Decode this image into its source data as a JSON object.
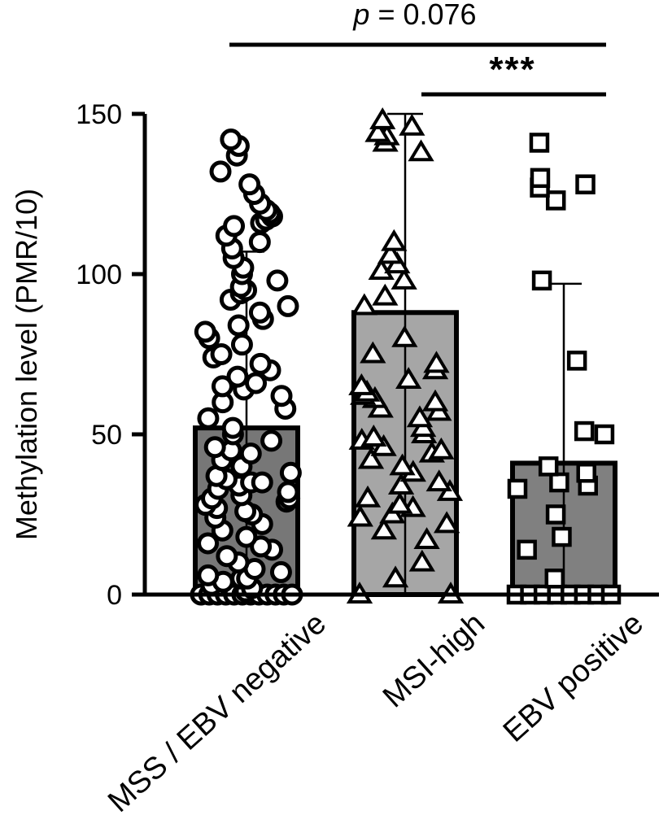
{
  "chart_data": {
    "type": "bar",
    "ylabel": "Methylation level (PMR/10)",
    "xlabel": "",
    "ylim": [
      0,
      150
    ],
    "yticks": [
      0,
      50,
      100,
      150
    ],
    "categories": [
      "MSS / EBV negative",
      "MSI-high",
      "EBV positive"
    ],
    "bar_colors": [
      "#777777",
      "#a6a6a6",
      "#808080"
    ],
    "values": [
      52,
      88,
      41
    ],
    "error_upper": [
      107,
      150,
      97
    ],
    "series": [
      {
        "category": "MSS / EBV negative",
        "marker": "circle",
        "points": [
          0,
          0,
          0,
          0,
          0,
          0,
          0,
          0,
          0,
          0,
          0,
          0,
          1,
          2,
          3,
          4,
          5,
          5,
          6,
          7,
          8,
          10,
          12,
          14,
          15,
          16,
          18,
          20,
          22,
          24,
          25,
          26,
          27,
          28,
          29,
          30,
          30,
          31,
          32,
          33,
          34,
          35,
          35,
          36,
          37,
          38,
          40,
          42,
          44,
          45,
          46,
          48,
          50,
          52,
          55,
          58,
          60,
          62,
          64,
          65,
          66,
          68,
          70,
          72,
          74,
          75,
          78,
          80,
          82,
          84,
          86,
          88,
          90,
          92,
          94,
          95,
          96,
          98,
          100,
          102,
          105,
          108,
          110,
          112,
          115,
          116,
          117,
          118,
          119,
          120,
          122,
          125,
          128,
          132,
          137,
          140,
          142
        ]
      },
      {
        "category": "MSI-high",
        "marker": "triangle",
        "points": [
          0,
          0,
          5,
          10,
          17,
          20,
          22,
          24,
          25,
          27,
          28,
          30,
          32,
          34,
          35,
          38,
          40,
          42,
          44,
          45,
          46,
          48,
          49,
          50,
          52,
          55,
          57,
          58,
          60,
          61,
          62,
          63,
          65,
          67,
          70,
          72,
          75,
          80,
          90,
          93,
          98,
          101,
          103,
          106,
          110,
          138,
          141,
          143,
          144,
          146,
          148
        ]
      },
      {
        "category": "EBV positive",
        "marker": "square",
        "points": [
          0,
          0,
          0,
          0,
          0,
          0,
          0,
          0,
          5,
          14,
          18,
          25,
          33,
          34,
          35,
          38,
          40,
          50,
          51,
          73,
          98,
          123,
          127,
          128,
          130,
          141
        ]
      }
    ],
    "annotations": [
      {
        "text": "p = 0.076",
        "from": "MSS / EBV negative",
        "to": "EBV positive"
      },
      {
        "text": "***",
        "from": "MSI-high",
        "to": "EBV positive"
      }
    ]
  }
}
